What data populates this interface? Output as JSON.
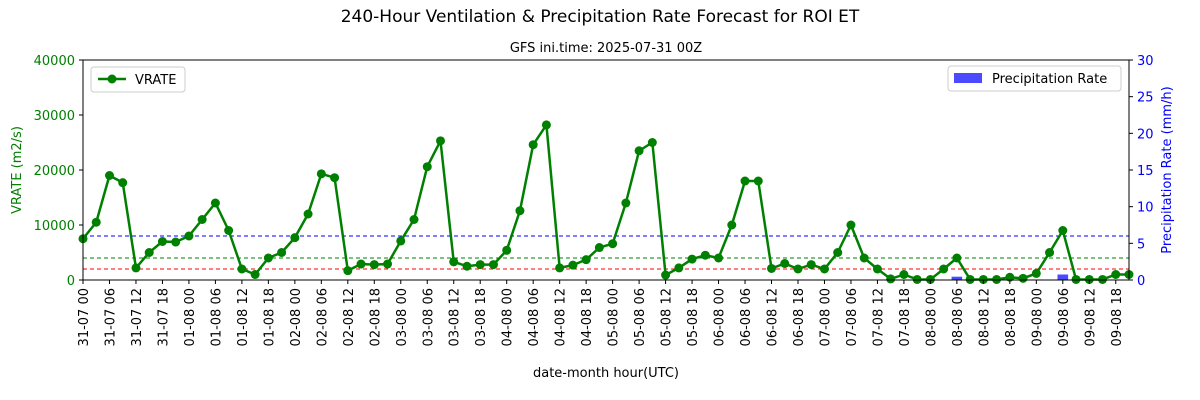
{
  "chart_data": {
    "type": "line",
    "title": "240-Hour Ventilation & Precipitation Rate Forecast for ROI ET",
    "subtitle": "GFS ini.time: 2025-07-31 00Z",
    "xlabel": "date-month hour(UTC)",
    "y_left_label": "VRATE (m2/s)",
    "y_right_label": "Precipitation Rate (mm/h)",
    "y_left_lim": [
      0,
      40000
    ],
    "y_right_lim": [
      0,
      30
    ],
    "y_left_ticks": [
      "0",
      "10000",
      "20000",
      "30000",
      "40000"
    ],
    "y_right_ticks": [
      "0",
      "5",
      "10",
      "15",
      "20",
      "25",
      "30"
    ],
    "x_tick_labels": [
      "31-07 00",
      "31-07 06",
      "31-07 12",
      "31-07 18",
      "01-08 00",
      "01-08 06",
      "01-08 12",
      "01-08 18",
      "02-08 00",
      "02-08 06",
      "02-08 12",
      "02-08 18",
      "03-08 00",
      "03-08 06",
      "03-08 12",
      "03-08 18",
      "04-08 00",
      "04-08 06",
      "04-08 12",
      "04-08 18",
      "05-08 00",
      "05-08 06",
      "05-08 12",
      "05-08 18",
      "06-08 00",
      "06-08 06",
      "06-08 12",
      "06-08 18",
      "07-08 00",
      "07-08 06",
      "07-08 12",
      "07-08 18",
      "08-08 00",
      "08-08 06",
      "08-08 12",
      "08-08 18",
      "09-08 00",
      "09-08 06",
      "09-08 12",
      "09-08 18"
    ],
    "time_step_hours": 3,
    "series": [
      {
        "name": "VRATE",
        "axis": "left",
        "color": "#008000",
        "marker": "circle",
        "values": [
          7500,
          10500,
          19000,
          17700,
          2200,
          5000,
          7000,
          6900,
          8000,
          11000,
          14000,
          9000,
          2000,
          1000,
          4000,
          5000,
          7700,
          12000,
          19300,
          18600,
          1700,
          2900,
          2800,
          2900,
          7100,
          11000,
          20600,
          25300,
          3300,
          2500,
          2800,
          2800,
          5400,
          12600,
          24600,
          28200,
          2200,
          2700,
          3700,
          5900,
          6600,
          14000,
          23500,
          25000,
          900,
          2200,
          3800,
          4500,
          4000,
          10000,
          18000,
          18000,
          2100,
          3000,
          2000,
          2800,
          2000,
          5000,
          10000,
          4000,
          2000,
          200,
          1000,
          100,
          100,
          2000,
          4000,
          100,
          100,
          100,
          500,
          300,
          1200,
          5000,
          9000,
          100,
          100,
          100,
          1000,
          1000
        ]
      },
      {
        "name": "Precipitation Rate",
        "axis": "right",
        "type": "bar",
        "color": "#4a4aff",
        "values": [
          0,
          0,
          0,
          0,
          0,
          0,
          0,
          0,
          0,
          0,
          0,
          0,
          0,
          0,
          0,
          0,
          0,
          0,
          0,
          0,
          0,
          0,
          0,
          0,
          0,
          0,
          0,
          0,
          0,
          0,
          0,
          0,
          0,
          0,
          0,
          0,
          0,
          0,
          0,
          0,
          0,
          0,
          0,
          0,
          0,
          0,
          0,
          0,
          0,
          0,
          0,
          0,
          0,
          0,
          0,
          0,
          0,
          0,
          0,
          0,
          0,
          0,
          0,
          0,
          0,
          0,
          0.45,
          0,
          0,
          0,
          0,
          0,
          0,
          0,
          0.75,
          0,
          0,
          0,
          0,
          0
        ]
      }
    ],
    "threshold_lines": [
      {
        "axis": "left",
        "value": 8000,
        "color": "#0000ff",
        "style": "dashed"
      },
      {
        "axis": "left",
        "value": 4000,
        "color": "#008000",
        "style": "dashed"
      },
      {
        "axis": "left",
        "value": 2000,
        "color": "#ff0000",
        "style": "dashed"
      }
    ],
    "legend": {
      "left": {
        "label": "VRATE",
        "placement": "upper-left"
      },
      "right": {
        "label": "Precipitation Rate",
        "placement": "upper-right"
      }
    },
    "colors": {
      "left_axis": "#008000",
      "right_axis": "#0000ff",
      "text": "#000000"
    }
  }
}
